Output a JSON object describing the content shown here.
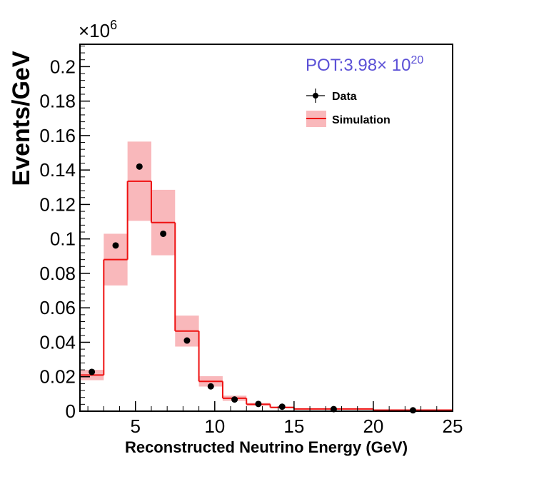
{
  "chart_data": {
    "type": "histogram",
    "xlabel": "Reconstructed Neutrino Energy (GeV)",
    "ylabel": "Events/GeV",
    "y_multiplier_base": "×10",
    "y_multiplier_exp": "6",
    "xlim": [
      1.5,
      25
    ],
    "ylim": [
      0,
      0.213
    ],
    "x_ticks": [
      5,
      10,
      15,
      20,
      25
    ],
    "y_ticks": [
      0,
      0.02,
      0.04,
      0.06,
      0.08,
      0.1,
      0.12,
      0.14,
      0.16,
      0.18,
      0.2
    ],
    "y_tick_labels": [
      "0",
      "0.02",
      "0.04",
      "0.06",
      "0.08",
      "0.1",
      "0.12",
      "0.14",
      "0.16",
      "0.18",
      "0.2"
    ],
    "annotation": {
      "text": "POT:3.98× 10",
      "exponent": "20",
      "color": "#5b50d6"
    },
    "legend": {
      "position": "top-right",
      "entries": [
        "Data",
        "Simulation"
      ]
    },
    "simulation": {
      "name": "Simulation",
      "color": "#ee1111",
      "band_color": "#f9b8bb",
      "bins": [
        {
          "lo": 1.5,
          "hi": 3.0,
          "value": 0.021,
          "err": 0.003
        },
        {
          "lo": 3.0,
          "hi": 4.5,
          "value": 0.088,
          "err": 0.015
        },
        {
          "lo": 4.5,
          "hi": 6.0,
          "value": 0.1335,
          "err": 0.023
        },
        {
          "lo": 6.0,
          "hi": 7.5,
          "value": 0.1095,
          "err": 0.019
        },
        {
          "lo": 7.5,
          "hi": 9.0,
          "value": 0.0465,
          "err": 0.009
        },
        {
          "lo": 9.0,
          "hi": 10.5,
          "value": 0.0173,
          "err": 0.003
        },
        {
          "lo": 10.5,
          "hi": 12.0,
          "value": 0.0075,
          "err": 0.0015
        },
        {
          "lo": 12.0,
          "hi": 13.5,
          "value": 0.004,
          "err": 0.0008
        },
        {
          "lo": 13.5,
          "hi": 15.0,
          "value": 0.0022,
          "err": 0.0005
        },
        {
          "lo": 15.0,
          "hi": 20.0,
          "value": 0.0013,
          "err": 0.0003
        },
        {
          "lo": 20.0,
          "hi": 25.0,
          "value": 0.0006,
          "err": 0.00015
        }
      ]
    },
    "data": {
      "name": "Data",
      "points": [
        {
          "x": 2.25,
          "y": 0.0228
        },
        {
          "x": 3.75,
          "y": 0.0962
        },
        {
          "x": 5.25,
          "y": 0.142
        },
        {
          "x": 6.75,
          "y": 0.103
        },
        {
          "x": 8.25,
          "y": 0.041
        },
        {
          "x": 9.75,
          "y": 0.0144
        },
        {
          "x": 11.25,
          "y": 0.0068
        },
        {
          "x": 12.75,
          "y": 0.0042
        },
        {
          "x": 14.25,
          "y": 0.0026
        },
        {
          "x": 17.5,
          "y": 0.0012
        },
        {
          "x": 22.5,
          "y": 0.0005
        }
      ]
    }
  }
}
